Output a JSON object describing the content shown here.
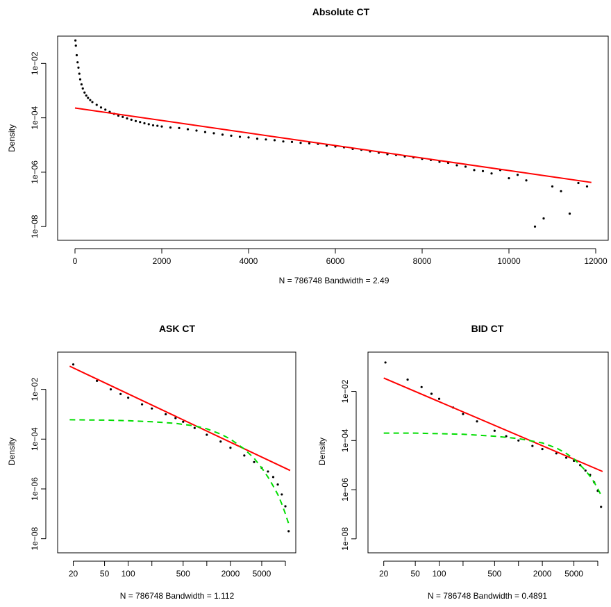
{
  "chart_data": [
    {
      "type": "scatter",
      "title": "Absolute CT",
      "xlabel": "N = 786748   Bandwidth = 2.49",
      "ylabel": "Density",
      "x_scale": "linear",
      "y_scale": "log",
      "xlim": [
        0,
        12000
      ],
      "ylim_log10": [
        -8.3,
        -1.2
      ],
      "x_ticks": [
        0,
        2000,
        4000,
        6000,
        8000,
        10000,
        12000
      ],
      "x_tick_labels": [
        "0",
        "2000",
        "4000",
        "6000",
        "8000",
        "10000",
        "12000"
      ],
      "y_ticks_log10": [
        -8,
        -6,
        -4,
        -2
      ],
      "y_tick_labels": [
        "1e−08",
        "1e−06",
        "1e−04",
        "1e−02"
      ],
      "colors": {
        "points": "#000000",
        "fit_line": "#ff0000"
      },
      "points": [
        [
          10,
          0.07
        ],
        [
          20,
          0.045
        ],
        [
          40,
          0.02
        ],
        [
          60,
          0.011
        ],
        [
          80,
          0.007
        ],
        [
          100,
          0.0042
        ],
        [
          120,
          0.0026
        ],
        [
          150,
          0.0017
        ],
        [
          180,
          0.0012
        ],
        [
          220,
          0.00085
        ],
        [
          260,
          0.00066
        ],
        [
          300,
          0.00054
        ],
        [
          350,
          0.00045
        ],
        [
          400,
          0.00038
        ],
        [
          500,
          0.0003
        ],
        [
          600,
          0.00024
        ],
        [
          700,
          0.0002
        ],
        [
          800,
          0.000165
        ],
        [
          900,
          0.00014
        ],
        [
          1000,
          0.00012
        ],
        [
          1100,
          0.000108
        ],
        [
          1200,
          9.5e-05
        ],
        [
          1300,
          8.5e-05
        ],
        [
          1400,
          7.6e-05
        ],
        [
          1500,
          7e-05
        ],
        [
          1600,
          6.3e-05
        ],
        [
          1700,
          5.8e-05
        ],
        [
          1800,
          5.3e-05
        ],
        [
          1900,
          5.1e-05
        ],
        [
          2000,
          4.8e-05
        ],
        [
          2200,
          4.4e-05
        ],
        [
          2400,
          4.2e-05
        ],
        [
          2600,
          3.8e-05
        ],
        [
          2800,
          3.4e-05
        ],
        [
          3000,
          3e-05
        ],
        [
          3200,
          2.7e-05
        ],
        [
          3400,
          2.4e-05
        ],
        [
          3600,
          2.2e-05
        ],
        [
          3800,
          2e-05
        ],
        [
          4000,
          1.9e-05
        ],
        [
          4200,
          1.7e-05
        ],
        [
          4400,
          1.6e-05
        ],
        [
          4600,
          1.5e-05
        ],
        [
          4800,
          1.35e-05
        ],
        [
          5000,
          1.3e-05
        ],
        [
          5200,
          1.2e-05
        ],
        [
          5400,
          1.15e-05
        ],
        [
          5600,
          1.1e-05
        ],
        [
          5800,
          9.5e-06
        ],
        [
          6000,
          8.8e-06
        ],
        [
          6200,
          8.2e-06
        ],
        [
          6400,
          7.2e-06
        ],
        [
          6600,
          6.7e-06
        ],
        [
          6800,
          5.8e-06
        ],
        [
          7000,
          5.2e-06
        ],
        [
          7200,
          4.6e-06
        ],
        [
          7400,
          4.3e-06
        ],
        [
          7600,
          3.8e-06
        ],
        [
          7800,
          3.5e-06
        ],
        [
          8000,
          3.1e-06
        ],
        [
          8200,
          2.8e-06
        ],
        [
          8400,
          2.4e-06
        ],
        [
          8600,
          2.2e-06
        ],
        [
          8800,
          1.8e-06
        ],
        [
          9000,
          1.6e-06
        ],
        [
          9200,
          1.2e-06
        ],
        [
          9400,
          1.1e-06
        ],
        [
          9600,
          9e-07
        ],
        [
          9800,
          1.2e-06
        ],
        [
          10000,
          6e-07
        ],
        [
          10200,
          8e-07
        ],
        [
          10400,
          5e-07
        ],
        [
          10600,
          1e-08
        ],
        [
          10800,
          2e-08
        ],
        [
          11000,
          3e-07
        ],
        [
          11200,
          2e-07
        ],
        [
          11400,
          3e-08
        ],
        [
          11600,
          4e-07
        ],
        [
          11800,
          3e-07
        ]
      ],
      "fit_line": {
        "x": [
          0,
          11900
        ],
        "y": [
          0.00023,
          4.2e-07
        ]
      }
    },
    {
      "type": "scatter",
      "title": "ASK CT",
      "xlabel": "N = 786748   Bandwidth = 1.112",
      "ylabel": "Density",
      "x_scale": "log",
      "y_scale": "log",
      "xlim": [
        14,
        12000
      ],
      "ylim_log10": [
        -8.4,
        -0.7
      ],
      "x_ticks": [
        20,
        50,
        100,
        200,
        500,
        1000,
        2000,
        5000,
        10000
      ],
      "x_tick_labels": [
        "20",
        "50",
        "100",
        "",
        "500",
        "",
        "2000",
        "5000",
        ""
      ],
      "y_ticks_log10": [
        -8,
        -6,
        -4,
        -2
      ],
      "y_tick_labels": [
        "1e−08",
        "1e−06",
        "1e−04",
        "1e−02"
      ],
      "colors": {
        "points": "#000000",
        "fit_line": "#ff0000",
        "fit_curve": "#00dd00"
      },
      "points": [
        [
          20,
          0.1
        ],
        [
          40,
          0.022
        ],
        [
          60,
          0.01
        ],
        [
          80,
          0.0065
        ],
        [
          100,
          0.0046
        ],
        [
          150,
          0.0025
        ],
        [
          200,
          0.0017
        ],
        [
          300,
          0.001
        ],
        [
          400,
          0.0007
        ],
        [
          500,
          0.0005
        ],
        [
          700,
          0.00028
        ],
        [
          1000,
          0.00015
        ],
        [
          1500,
          8e-05
        ],
        [
          2000,
          4.5e-05
        ],
        [
          3000,
          2.2e-05
        ],
        [
          4000,
          1.2e-05
        ],
        [
          5000,
          7e-06
        ],
        [
          6000,
          5e-06
        ],
        [
          7000,
          3e-06
        ],
        [
          8000,
          1.5e-06
        ],
        [
          9000,
          6e-07
        ],
        [
          10000,
          2e-07
        ],
        [
          11000,
          2e-08
        ]
      ],
      "fit_line": {
        "x": [
          18,
          11500
        ],
        "y": [
          0.085,
          5.5e-06
        ]
      },
      "fit_curve": {
        "x": [
          18,
          50,
          100,
          200,
          400,
          700,
          1000,
          1500,
          2000,
          3000,
          4000,
          5000,
          6000,
          7000,
          8000,
          9000,
          10000,
          11000
        ],
        "y": [
          0.0006,
          0.00058,
          0.00055,
          0.0005,
          0.00043,
          0.00034,
          0.00026,
          0.00016,
          0.0001,
          4e-05,
          1.7e-05,
          7e-06,
          3e-06,
          1.3e-06,
          6e-07,
          2.5e-07,
          1e-07,
          4e-08
        ]
      }
    },
    {
      "type": "scatter",
      "title": "BID CT",
      "xlabel": "N = 786748   Bandwidth = 0.4891",
      "ylabel": "Density",
      "x_scale": "log",
      "y_scale": "log",
      "xlim": [
        14,
        12000
      ],
      "ylim_log10": [
        -8.4,
        -0.6
      ],
      "x_ticks": [
        20,
        50,
        100,
        200,
        500,
        1000,
        2000,
        5000,
        10000
      ],
      "x_tick_labels": [
        "20",
        "50",
        "100",
        "",
        "500",
        "",
        "2000",
        "5000",
        ""
      ],
      "y_ticks_log10": [
        -8,
        -6,
        -4,
        -2
      ],
      "y_tick_labels": [
        "1e−08",
        "1e−06",
        "1e−04",
        "1e−02"
      ],
      "colors": {
        "points": "#000000",
        "fit_line": "#ff0000",
        "fit_curve": "#00dd00"
      },
      "points": [
        [
          21,
          0.15
        ],
        [
          40,
          0.03
        ],
        [
          60,
          0.015
        ],
        [
          80,
          0.008
        ],
        [
          100,
          0.005
        ],
        [
          150,
          0.0022
        ],
        [
          200,
          0.0012
        ],
        [
          300,
          0.0006
        ],
        [
          500,
          0.00025
        ],
        [
          700,
          0.00015
        ],
        [
          1000,
          0.0001
        ],
        [
          1500,
          6e-05
        ],
        [
          2000,
          4.5e-05
        ],
        [
          3000,
          3e-05
        ],
        [
          4000,
          2e-05
        ],
        [
          5000,
          1.5e-05
        ],
        [
          6000,
          1e-05
        ],
        [
          7000,
          6e-06
        ],
        [
          8000,
          4e-06
        ],
        [
          9000,
          2e-06
        ],
        [
          10000,
          9e-07
        ],
        [
          11000,
          2e-07
        ]
      ],
      "fit_line": {
        "x": [
          20,
          11500
        ],
        "y": [
          0.035,
          5.5e-06
        ]
      },
      "fit_curve": {
        "x": [
          20,
          50,
          100,
          200,
          500,
          1000,
          2000,
          3000,
          4000,
          5000,
          6000,
          7000,
          8000,
          9000,
          10000,
          11000
        ],
        "y": [
          0.0002,
          0.0002,
          0.00019,
          0.00018,
          0.00015,
          0.00012,
          8e-05,
          5e-05,
          3e-05,
          1.8e-05,
          1e-05,
          6e-06,
          3.5e-06,
          2e-06,
          1.1e-06,
          6e-07
        ]
      }
    }
  ]
}
